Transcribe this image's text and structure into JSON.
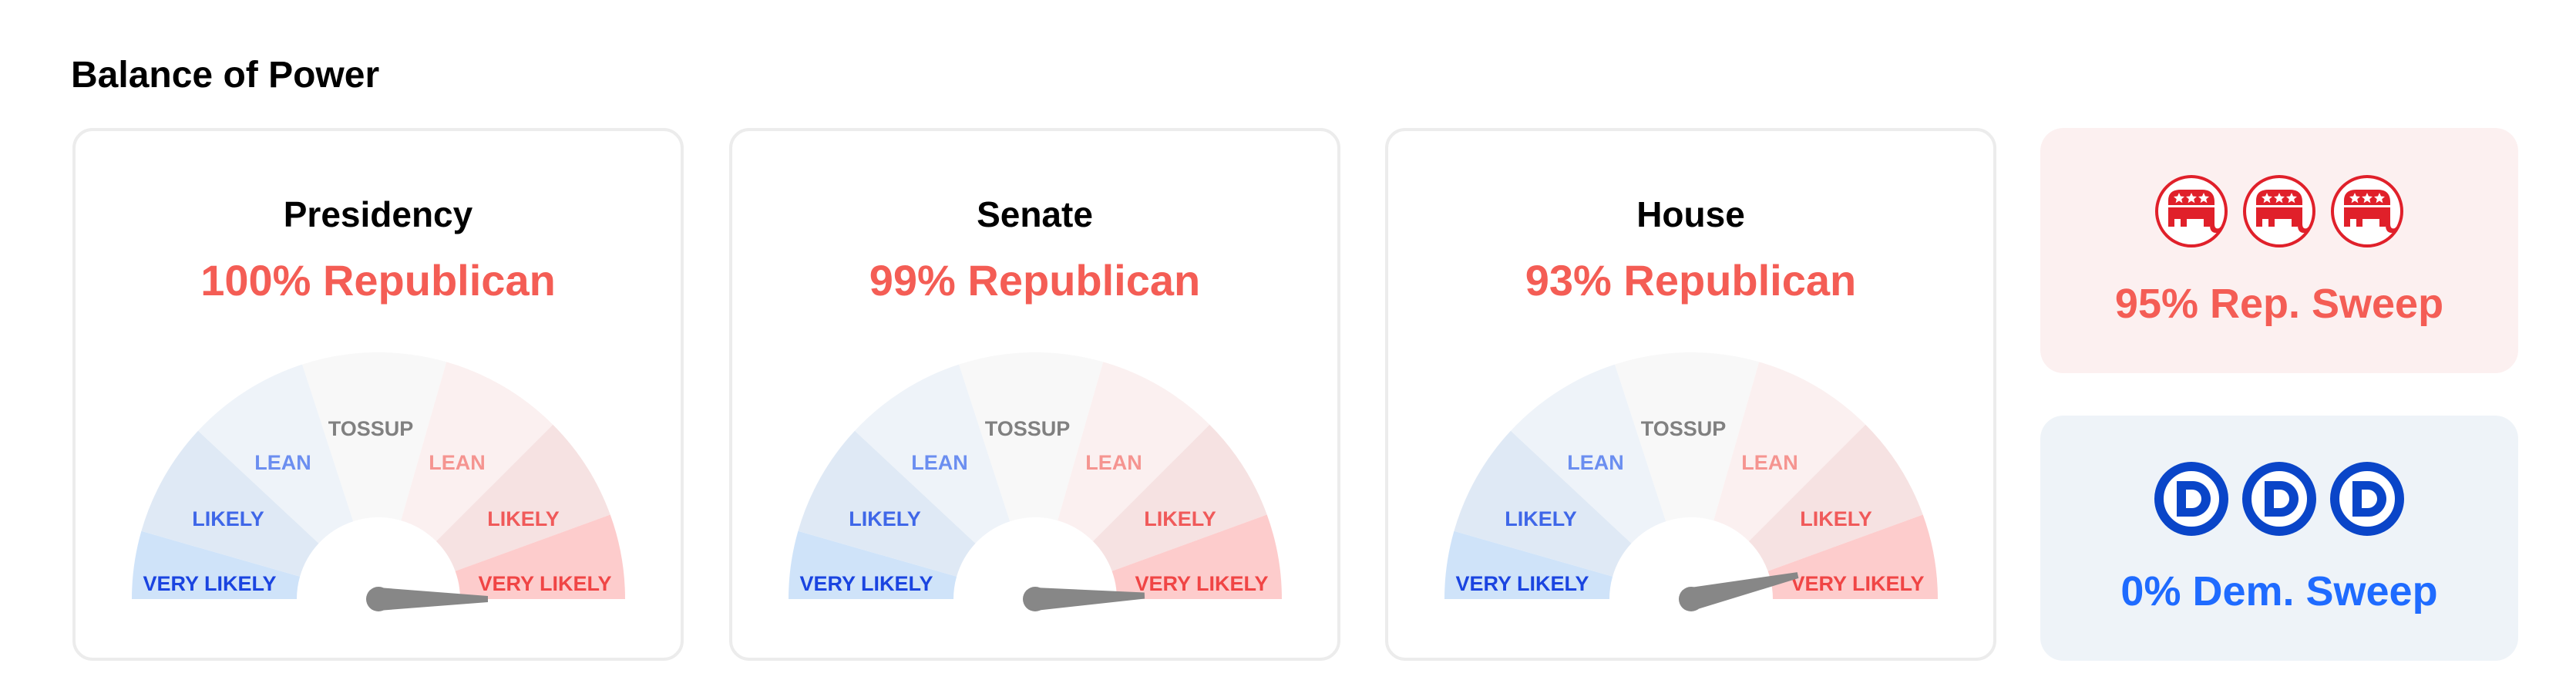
{
  "heading": "Balance of Power",
  "colors": {
    "rep_text": "#f45d55",
    "dem_text": "#1f6bff",
    "needle": "#878787",
    "rep_icon": "#e0202a",
    "dem_icon": "#0a45c8"
  },
  "gauge_segments": [
    {
      "label": "VERY LIKELY",
      "fill": "#cfe3f9",
      "text": "#1a44e0"
    },
    {
      "label": "LIKELY",
      "fill": "#dfe9f5",
      "text": "#3f67e8"
    },
    {
      "label": "LEAN",
      "fill": "#eef3f9",
      "text": "#6b8ef0"
    },
    {
      "label": "TOSSUP",
      "fill": "#f8f8f8",
      "text": "#808080"
    },
    {
      "label": "LEAN",
      "fill": "#fbf0f0",
      "text": "#f59490"
    },
    {
      "label": "LIKELY",
      "fill": "#f6e2e2",
      "text": "#f05a5a"
    },
    {
      "label": "VERY LIKELY",
      "fill": "#fdcccc",
      "text": "#f04545"
    }
  ],
  "cards": [
    {
      "title": "Presidency",
      "probability_text": "100% Republican",
      "rep_probability": 1.0
    },
    {
      "title": "Senate",
      "probability_text": "99% Republican",
      "rep_probability": 0.99
    },
    {
      "title": "House",
      "probability_text": "93% Republican",
      "rep_probability": 0.93
    }
  ],
  "sweeps": {
    "rep": {
      "label": "95% Rep. Sweep",
      "icon": "gop-elephant-icon",
      "icon_count": 3
    },
    "dem": {
      "label": "0% Dem. Sweep",
      "icon": "democratic-d-icon",
      "icon_count": 3
    }
  }
}
